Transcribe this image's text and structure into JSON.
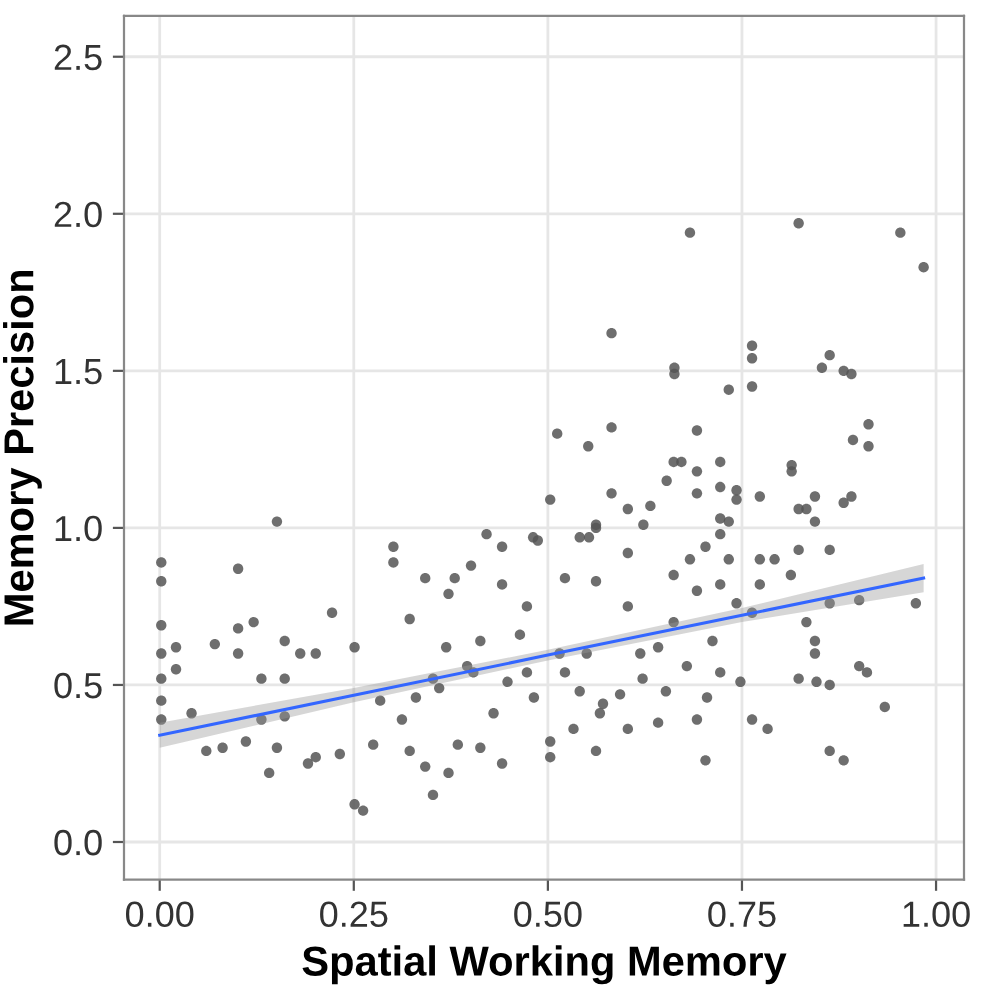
{
  "chart_data": {
    "type": "scatter",
    "xlabel": "Spatial Working Memory",
    "ylabel": "Memory Precision",
    "xlim": [
      -0.046,
      1.036
    ],
    "ylim": [
      -0.12,
      2.63
    ],
    "xticks": [
      {
        "value": 0,
        "label": "0.00"
      },
      {
        "value": 0.25,
        "label": "0.25"
      },
      {
        "value": 0.5,
        "label": "0.50"
      },
      {
        "value": 0.75,
        "label": "0.75"
      },
      {
        "value": 1,
        "label": "1.00"
      }
    ],
    "yticks": [
      {
        "value": 0,
        "label": "0.0"
      },
      {
        "value": 0.5,
        "label": "0.5"
      },
      {
        "value": 1,
        "label": "1.0"
      },
      {
        "value": 1.5,
        "label": "1.5"
      },
      {
        "value": 2,
        "label": "2.0"
      },
      {
        "value": 2.5,
        "label": "2.5"
      }
    ],
    "grid": true,
    "series": [
      {
        "color": "#555555",
        "marker": "circle",
        "x": [
          0.683,
          0.823,
          0.954,
          0.984,
          0.582,
          0.663,
          0.663,
          0.763,
          0.763,
          0.763,
          0.733,
          0.863,
          0.853,
          0.881,
          0.891,
          0.913,
          0.893,
          0.913,
          0.512,
          0.552,
          0.582,
          0.692,
          0.662,
          0.672,
          0.692,
          0.722,
          0.814,
          0.814,
          0.653,
          0.582,
          0.692,
          0.722,
          0.743,
          0.743,
          0.773,
          0.844,
          0.891,
          0.881,
          0.823,
          0.833,
          0.503,
          0.603,
          0.632,
          0.623,
          0.562,
          0.151,
          0.301,
          0.421,
          0.441,
          0.487,
          0.553,
          0.733,
          0.722,
          0.844,
          0.002,
          0.002,
          0.002,
          0.002,
          0.002,
          0.002,
          0.002,
          0.021,
          0.021,
          0.101,
          0.121,
          0.101,
          0.101,
          0.071,
          0.141,
          0.151,
          0.161,
          0.161,
          0.131,
          0.181,
          0.201,
          0.222,
          0.191,
          0.201,
          0.06,
          0.081,
          0.041,
          0.111,
          0.131,
          0.161,
          0.251,
          0.251,
          0.262,
          0.232,
          0.275,
          0.301,
          0.322,
          0.342,
          0.352,
          0.372,
          0.342,
          0.322,
          0.284,
          0.36,
          0.38,
          0.372,
          0.401,
          0.441,
          0.441,
          0.413,
          0.384,
          0.481,
          0.503,
          0.503,
          0.473,
          0.473,
          0.448,
          0.413,
          0.396,
          0.352,
          0.33,
          0.312,
          0.522,
          0.522,
          0.541,
          0.562,
          0.562,
          0.562,
          0.55,
          0.533,
          0.571,
          0.603,
          0.603,
          0.603,
          0.622,
          0.642,
          0.642,
          0.662,
          0.662,
          0.652,
          0.683,
          0.692,
          0.692,
          0.703,
          0.703,
          0.722,
          0.722,
          0.733,
          0.722,
          0.712,
          0.743,
          0.763,
          0.763,
          0.783,
          0.773,
          0.773,
          0.792,
          0.813,
          0.823,
          0.823,
          0.833,
          0.844,
          0.844,
          0.863,
          0.863,
          0.863,
          0.881,
          0.863,
          0.846,
          0.901,
          0.911,
          0.901,
          0.934,
          0.974,
          0.748,
          0.705,
          0.679,
          0.619,
          0.593,
          0.567,
          0.541,
          0.515,
          0.482,
          0.464,
          0.43,
          0.404,
          0.369
        ],
        "values": [
          1.94,
          1.97,
          1.94,
          1.83,
          1.62,
          1.51,
          1.49,
          1.58,
          1.54,
          1.45,
          1.44,
          1.55,
          1.51,
          1.5,
          1.49,
          1.33,
          1.28,
          1.26,
          1.3,
          1.26,
          1.32,
          1.31,
          1.21,
          1.21,
          1.18,
          1.21,
          1.2,
          1.18,
          1.15,
          1.11,
          1.11,
          1.13,
          1.12,
          1.09,
          1.1,
          1.1,
          1.1,
          1.08,
          1.06,
          1.06,
          1.09,
          1.06,
          1.07,
          1.01,
          1.01,
          1.02,
          0.94,
          0.98,
          0.94,
          0.96,
          0.97,
          1.02,
          1.03,
          1.02,
          0.89,
          0.83,
          0.69,
          0.6,
          0.52,
          0.45,
          0.39,
          0.62,
          0.55,
          0.87,
          0.7,
          0.68,
          0.6,
          0.63,
          0.22,
          0.3,
          0.52,
          0.64,
          0.52,
          0.6,
          0.6,
          0.73,
          0.25,
          0.27,
          0.29,
          0.3,
          0.41,
          0.32,
          0.39,
          0.4,
          0.62,
          0.12,
          0.1,
          0.28,
          0.31,
          0.89,
          0.71,
          0.84,
          0.15,
          0.22,
          0.24,
          0.29,
          0.45,
          0.49,
          0.84,
          0.79,
          0.88,
          0.82,
          0.25,
          0.3,
          0.31,
          0.97,
          0.27,
          0.32,
          0.75,
          0.54,
          0.51,
          0.64,
          0.56,
          0.52,
          0.46,
          0.39,
          0.84,
          0.54,
          0.97,
          0.29,
          0.83,
          1.0,
          0.6,
          0.36,
          0.44,
          0.92,
          0.75,
          0.36,
          0.52,
          0.38,
          0.62,
          0.85,
          0.7,
          0.48,
          0.9,
          0.8,
          0.39,
          0.26,
          0.94,
          0.98,
          0.82,
          0.9,
          0.54,
          0.64,
          0.76,
          0.73,
          0.39,
          0.36,
          0.9,
          0.82,
          0.9,
          0.85,
          0.93,
          0.52,
          0.7,
          0.64,
          0.6,
          0.76,
          0.93,
          0.29,
          0.26,
          0.5,
          0.51,
          0.56,
          0.54,
          0.77,
          0.43,
          0.76,
          0.51,
          0.46,
          0.56,
          0.6,
          0.47,
          0.41,
          0.48,
          0.6,
          0.46,
          0.66,
          0.41,
          0.54,
          0.62
        ]
      },
      {
        "type": "line",
        "marker": "none",
        "color": "#3366ff",
        "x": [
          0,
          0.25,
          0.5,
          0.75,
          0.984
        ],
        "values": [
          0.34,
          0.467,
          0.595,
          0.722,
          0.84
        ],
        "lower": [
          0.3,
          0.445,
          0.578,
          0.7,
          0.795
        ],
        "upper": [
          0.38,
          0.49,
          0.612,
          0.745,
          0.885
        ]
      }
    ]
  }
}
